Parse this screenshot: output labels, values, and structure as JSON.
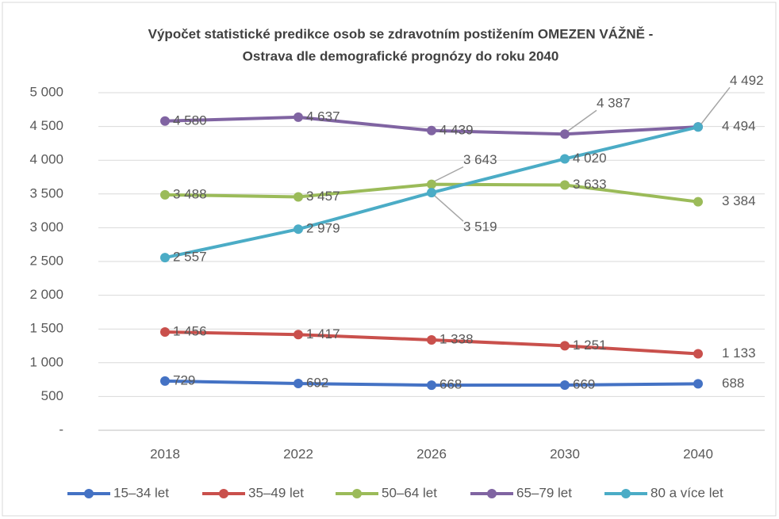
{
  "chart_data": {
    "type": "line",
    "title": [
      "Výpočet statistické predikce osob se zdravotním postižením OMEZEN VÁŽNĚ -",
      "Ostrava dle demografické prognózy do roku 2040"
    ],
    "categories": [
      "2018",
      "2022",
      "2026",
      "2030",
      "2040"
    ],
    "series": [
      {
        "name": "15–34 let",
        "color": "#4472c4",
        "values": [
          729,
          692,
          668,
          669,
          688
        ],
        "value_labels": [
          "729",
          "692",
          "668",
          "669",
          "688"
        ]
      },
      {
        "name": "35–49 let",
        "color": "#c9504c",
        "values": [
          1456,
          1417,
          1338,
          1251,
          1133
        ],
        "value_labels": [
          "1 456",
          "1 417",
          "1 338",
          "1 251",
          "1 133"
        ]
      },
      {
        "name": "50–64 let",
        "color": "#9bbb59",
        "values": [
          3488,
          3457,
          3643,
          3633,
          3384
        ],
        "value_labels": [
          "3 488",
          "3 457",
          "3 643",
          "3 633",
          "3 384"
        ]
      },
      {
        "name": "65–79 let",
        "color": "#8064a2",
        "values": [
          4580,
          4637,
          4439,
          4387,
          4494
        ],
        "value_labels": [
          "4 580",
          "4 637",
          "4 439",
          "4 387",
          "4 494"
        ]
      },
      {
        "name": "80 a více let",
        "color": "#4bacc6",
        "values": [
          2557,
          2979,
          3519,
          4020,
          4492
        ],
        "value_labels": [
          "2 557",
          "2 979",
          "3 519",
          "4 020",
          "4 492"
        ]
      }
    ],
    "ylim": [
      0,
      5000
    ],
    "yticks": [
      {
        "value": 0,
        "label": "-"
      },
      500,
      {
        "value": 1000,
        "label": "1 000"
      },
      {
        "value": 1500,
        "label": "1 500"
      },
      {
        "value": 2000,
        "label": "2 000"
      },
      {
        "value": 2500,
        "label": "2 500"
      },
      {
        "value": 3000,
        "label": "3 000"
      },
      {
        "value": 3500,
        "label": "3 500"
      },
      {
        "value": 4000,
        "label": "4 000"
      },
      {
        "value": 4500,
        "label": "4 500"
      },
      {
        "value": 5000,
        "label": "5 000"
      }
    ],
    "grid": true,
    "legend": "bottom"
  }
}
